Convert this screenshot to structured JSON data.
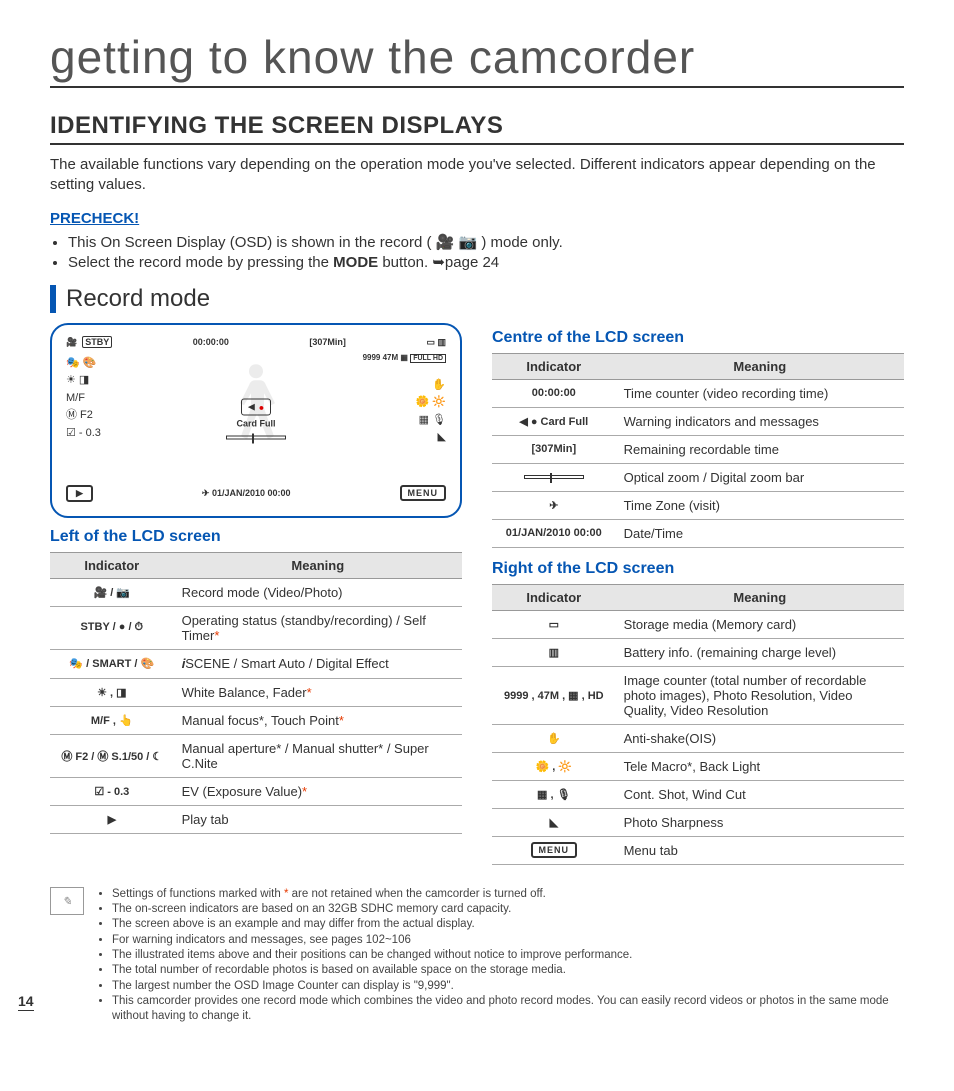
{
  "page_number": "14",
  "title": "getting to know the camcorder",
  "h1": "IDENTIFYING THE SCREEN DISPLAYS",
  "intro": "The available functions vary depending on the operation mode you've selected. Different indicators appear depending on the setting values.",
  "precheck": {
    "label": "PRECHECK!",
    "items": [
      "This On Screen Display (OSD) is shown in the record ( 🎥 📷 ) mode only.",
      "Select the record mode by pressing the MODE button. ➥page 24"
    ]
  },
  "subsection": "Record mode",
  "lcd": {
    "top_left": "STBY",
    "time": "00:00:00",
    "remain": "[307Min]",
    "card_full": "Card Full",
    "counter_line": "9999  47M",
    "date": "01/JAN/2010 00:00",
    "menu": "MENU",
    "left_small": [
      "🎥",
      "🎭",
      "☀",
      "M/F",
      "Ⓜ F2",
      "☑ - 0.3"
    ],
    "right_small": [
      "✋",
      "🌼 🔆",
      "▦ 🎙",
      "◣"
    ]
  },
  "left_header": "Left of the LCD screen",
  "centre_header": "Centre of the LCD screen",
  "right_header": "Right of the LCD screen",
  "table_headers": {
    "indicator": "Indicator",
    "meaning": "Meaning"
  },
  "left_table": [
    {
      "ind": "🎥 / 📷",
      "mean": "Record mode (Video/Photo)"
    },
    {
      "ind": "STBY / ● / ⏱",
      "mean": "Operating status (standby/recording) / Self Timer",
      "ast": true
    },
    {
      "ind": "🎭 / SMART / 🎨",
      "mean": "𝒊SCENE / Smart Auto / Digital Effect"
    },
    {
      "ind": "☀ , ◨",
      "mean": "White Balance, Fader",
      "ast": true
    },
    {
      "ind": "M/F , 👆",
      "mean": "Manual focus*, Touch Point",
      "ast": true
    },
    {
      "ind": "Ⓜ F2 / Ⓜ S.1/50 / ☾",
      "mean": "Manual aperture* / Manual shutter* / Super C.Nite"
    },
    {
      "ind": "☑ - 0.3",
      "mean": "EV (Exposure Value)",
      "ast": true
    },
    {
      "ind": "▶",
      "mean": "Play tab"
    }
  ],
  "centre_table": [
    {
      "ind": "00:00:00",
      "mean": "Time counter (video recording time)"
    },
    {
      "ind": "◀ ●  Card Full",
      "mean": "Warning indicators and messages"
    },
    {
      "ind": "[307Min]",
      "mean": "Remaining recordable time"
    },
    {
      "ind": "ZOOMBAR",
      "mean": "Optical zoom / Digital zoom bar"
    },
    {
      "ind": "✈",
      "mean": "Time Zone (visit)"
    },
    {
      "ind": "01/JAN/2010 00:00",
      "mean": "Date/Time"
    }
  ],
  "right_table": [
    {
      "ind": "▭",
      "mean": "Storage media (Memory card)"
    },
    {
      "ind": "▥",
      "mean": "Battery info. (remaining charge level)"
    },
    {
      "ind": "9999 , 47M , ▦ , HD",
      "mean": "Image counter (total number of recordable photo images), Photo Resolution, Video Quality, Video Resolution"
    },
    {
      "ind": "✋",
      "mean": "Anti-shake(OIS)"
    },
    {
      "ind": "🌼 , 🔆",
      "mean": "Tele Macro*, Back Light"
    },
    {
      "ind": "▦ , 🎙",
      "mean": "Cont. Shot, Wind Cut"
    },
    {
      "ind": "◣",
      "mean": "Photo Sharpness"
    },
    {
      "ind": "MENU",
      "mean": "Menu tab"
    }
  ],
  "notes": [
    "Settings of functions marked with * are not retained when the camcorder is turned off.",
    "The on-screen indicators are based on an 32GB SDHC memory card capacity.",
    "The screen above is an example and may differ from the actual display.",
    "For warning indicators and messages, see pages 102~106",
    "The illustrated items above and their positions can be changed without notice to improve performance.",
    "The total number of recordable photos is based on available space on the storage media.",
    "The largest number the OSD Image Counter can display is \"9,999\".",
    "This camcorder provides one record mode which combines the video and photo record modes. You can easily record videos or photos in the same mode without having to change it."
  ]
}
